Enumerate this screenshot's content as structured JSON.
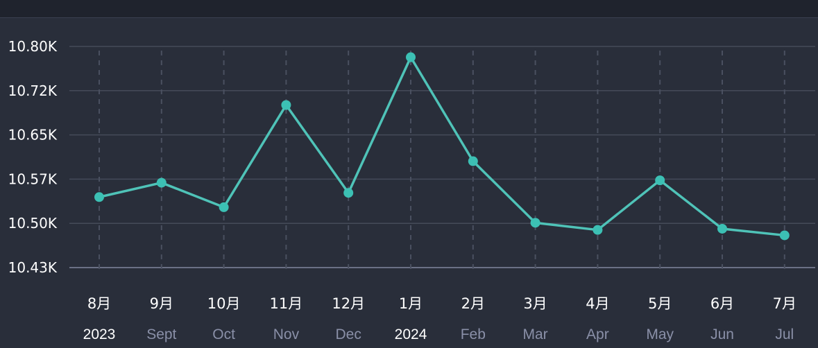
{
  "chart_data": {
    "type": "line",
    "title": "",
    "xlabel": "",
    "ylabel": "",
    "x_months": [
      "8月",
      "9月",
      "10月",
      "11月",
      "12月",
      "1月",
      "2月",
      "3月",
      "4月",
      "5月",
      "6月",
      "7月"
    ],
    "x_subs": [
      "2023",
      "Sept",
      "Oct",
      "Nov",
      "Dec",
      "2024",
      "Feb",
      "Mar",
      "Apr",
      "May",
      "Jun",
      "Jul"
    ],
    "x_sub_highlight": [
      true,
      false,
      false,
      false,
      false,
      true,
      false,
      false,
      false,
      false,
      false,
      false
    ],
    "yticks": [
      "10.80K",
      "10.72K",
      "10.65K",
      "10.57K",
      "10.50K",
      "10.43K"
    ],
    "ytick_values": [
      10800,
      10720,
      10650,
      10570,
      10500,
      10430
    ],
    "ylim": [
      10430,
      10800
    ],
    "grid": true,
    "series": [
      {
        "values": [
          10548,
          10572,
          10531,
          10702,
          10555,
          10782,
          10608,
          10505,
          10493,
          10576,
          10495,
          10484
        ]
      }
    ],
    "colors": {
      "line": "#4fc3b8",
      "point": "#3cc0b4",
      "grid": "#454b59",
      "vgrid": "#4a5060",
      "baseline": "#6b7185",
      "ytick": "#ffffff",
      "month_tick": "#ffffff",
      "sub_tick": "#8a90a8",
      "sub_tick_highlight": "#ffffff"
    }
  }
}
